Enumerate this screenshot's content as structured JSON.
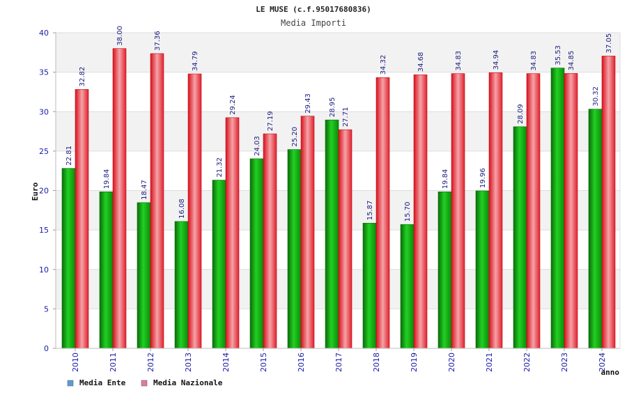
{
  "chart_data": {
    "type": "bar",
    "title": "LE MUSE (c.f.95017680836)",
    "subtitle": "Media Importi",
    "xlabel": "anno",
    "ylabel": "Euro",
    "ylim": [
      0,
      40
    ],
    "yticks": [
      0,
      5,
      10,
      15,
      20,
      25,
      30,
      35,
      40
    ],
    "grid": true,
    "legend_position": "bottom-left",
    "categories": [
      "2010",
      "2011",
      "2012",
      "2013",
      "2014",
      "2015",
      "2016",
      "2017",
      "2018",
      "2019",
      "2020",
      "2021",
      "2022",
      "2023",
      "2024"
    ],
    "series": [
      {
        "name": "Media Ente",
        "color": "#0a9e0a",
        "legend_color": "#5b9bd5",
        "values": [
          22.81,
          19.84,
          18.47,
          16.08,
          21.32,
          24.03,
          25.2,
          28.95,
          15.87,
          15.7,
          19.84,
          19.96,
          28.09,
          35.53,
          30.32
        ],
        "labels": [
          "22.81",
          "19.84",
          "18.47",
          "16.08",
          "21.32",
          "24.03",
          "25.20",
          "28.95",
          "15.87",
          "15.70",
          "19.84",
          "19.96",
          "28.09",
          "35.53",
          "30.32"
        ]
      },
      {
        "name": "Media Nazionale",
        "color": "#e3222e",
        "legend_color": "#e07aa8",
        "values": [
          32.82,
          38.0,
          37.36,
          34.79,
          29.24,
          27.19,
          29.43,
          27.71,
          34.32,
          34.68,
          34.83,
          34.94,
          34.83,
          34.85,
          37.05
        ],
        "labels": [
          "32.82",
          "38.00",
          "37.36",
          "34.79",
          "29.24",
          "27.19",
          "29.43",
          "27.71",
          "34.32",
          "34.68",
          "34.83",
          "34.94",
          "34.83",
          "34.85",
          "37.05"
        ]
      }
    ]
  }
}
